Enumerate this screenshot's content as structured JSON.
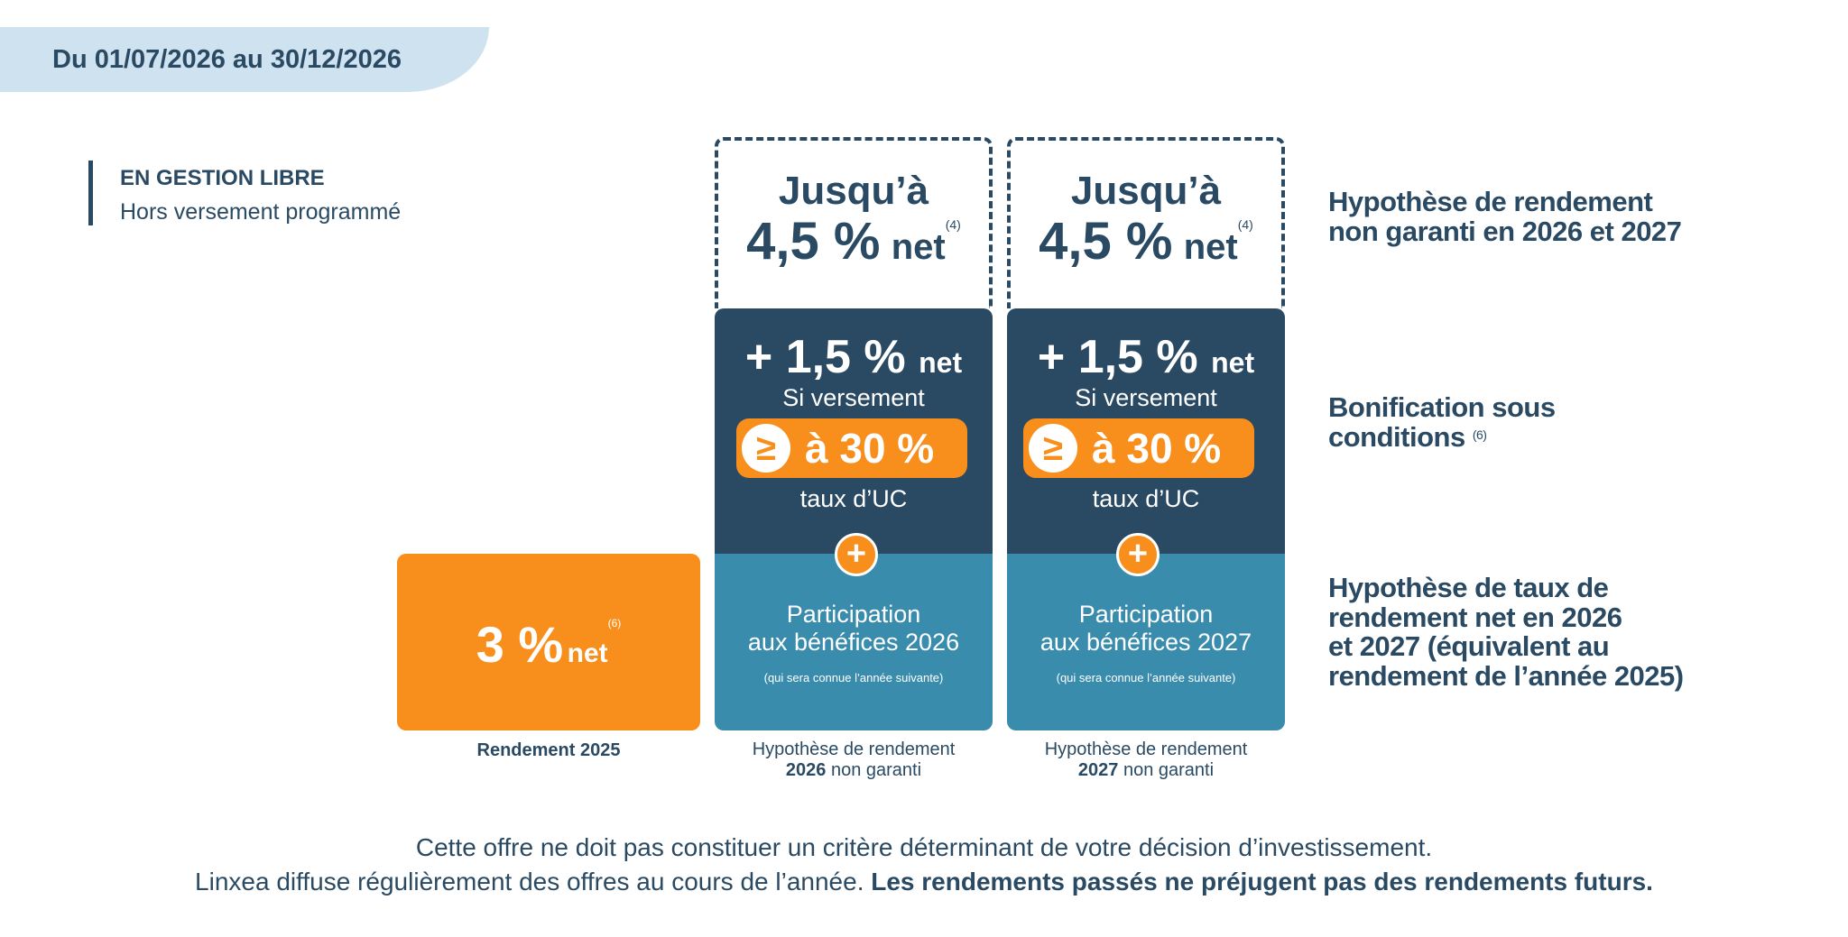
{
  "period": "Du 01/07/2026 au 30/12/2026",
  "mode": {
    "title": "EN GESTION LIBRE",
    "subtitle": "Hors versement programmé"
  },
  "columns": [
    {
      "top": {
        "line1": "Jusqu’à",
        "value": "4,5 %",
        "unit": "net",
        "ref": "(4)"
      },
      "bonus": {
        "value": "+ 1,5 %",
        "unit": "net",
        "line2": "Si versement",
        "symbol": "≥",
        "threshold": "à 30 %",
        "line3": "taux d’UC"
      },
      "plus": "+",
      "participation": {
        "line1": "Participation",
        "line2": "aux bénéfices 2026",
        "note": "(qui sera connue l’année suivante)"
      },
      "caption": {
        "line1": "Hypothèse de rendement",
        "year": "2026",
        "suffix": " non garanti"
      }
    },
    {
      "top": {
        "line1": "Jusqu’à",
        "value": "4,5 %",
        "unit": "net",
        "ref": "(4)"
      },
      "bonus": {
        "value": "+ 1,5 %",
        "unit": "net",
        "line2": "Si versement",
        "symbol": "≥",
        "threshold": "à 30 %",
        "line3": "taux d’UC"
      },
      "plus": "+",
      "participation": {
        "line1": "Participation",
        "line2": "aux bénéfices 2027",
        "note": "(qui sera connue l’année suivante)"
      },
      "caption": {
        "line1": "Hypothèse de rendement",
        "year": "2027",
        "suffix": " non garanti"
      }
    }
  ],
  "rendement2025": {
    "value": "3 %",
    "unit": "net",
    "ref": "(6)",
    "caption": "Rendement 2025"
  },
  "labels": {
    "hypo1": {
      "a": "Hypothèse de rendement",
      "b": "non garanti en ",
      "y1": "2026",
      "c": " et ",
      "y2": "2027"
    },
    "bonif": {
      "a": "Bonification sous",
      "b": "conditions",
      "ref": "(6)"
    },
    "hypo2": {
      "a": "Hypothèse de taux de",
      "b": "rendement net en ",
      "y1": "2026",
      "c": "et ",
      "y2": "2027",
      "d": " (équivalent au",
      "e": "rendement de l’année 2025)"
    }
  },
  "footer": {
    "line1": "Cette offre ne doit pas constituer un critère déterminant de votre décision d’investissement.",
    "line2_normal": "Linxea diffuse régulièrement des offres au cours de l’année. ",
    "line2_bold": "Les rendements passés ne préjugent pas des rendements futurs."
  },
  "colors": {
    "navy": "#2a4a63",
    "orange": "#f88e1b",
    "teal": "#3a8cad",
    "lightblue": "#cfe2ef"
  }
}
